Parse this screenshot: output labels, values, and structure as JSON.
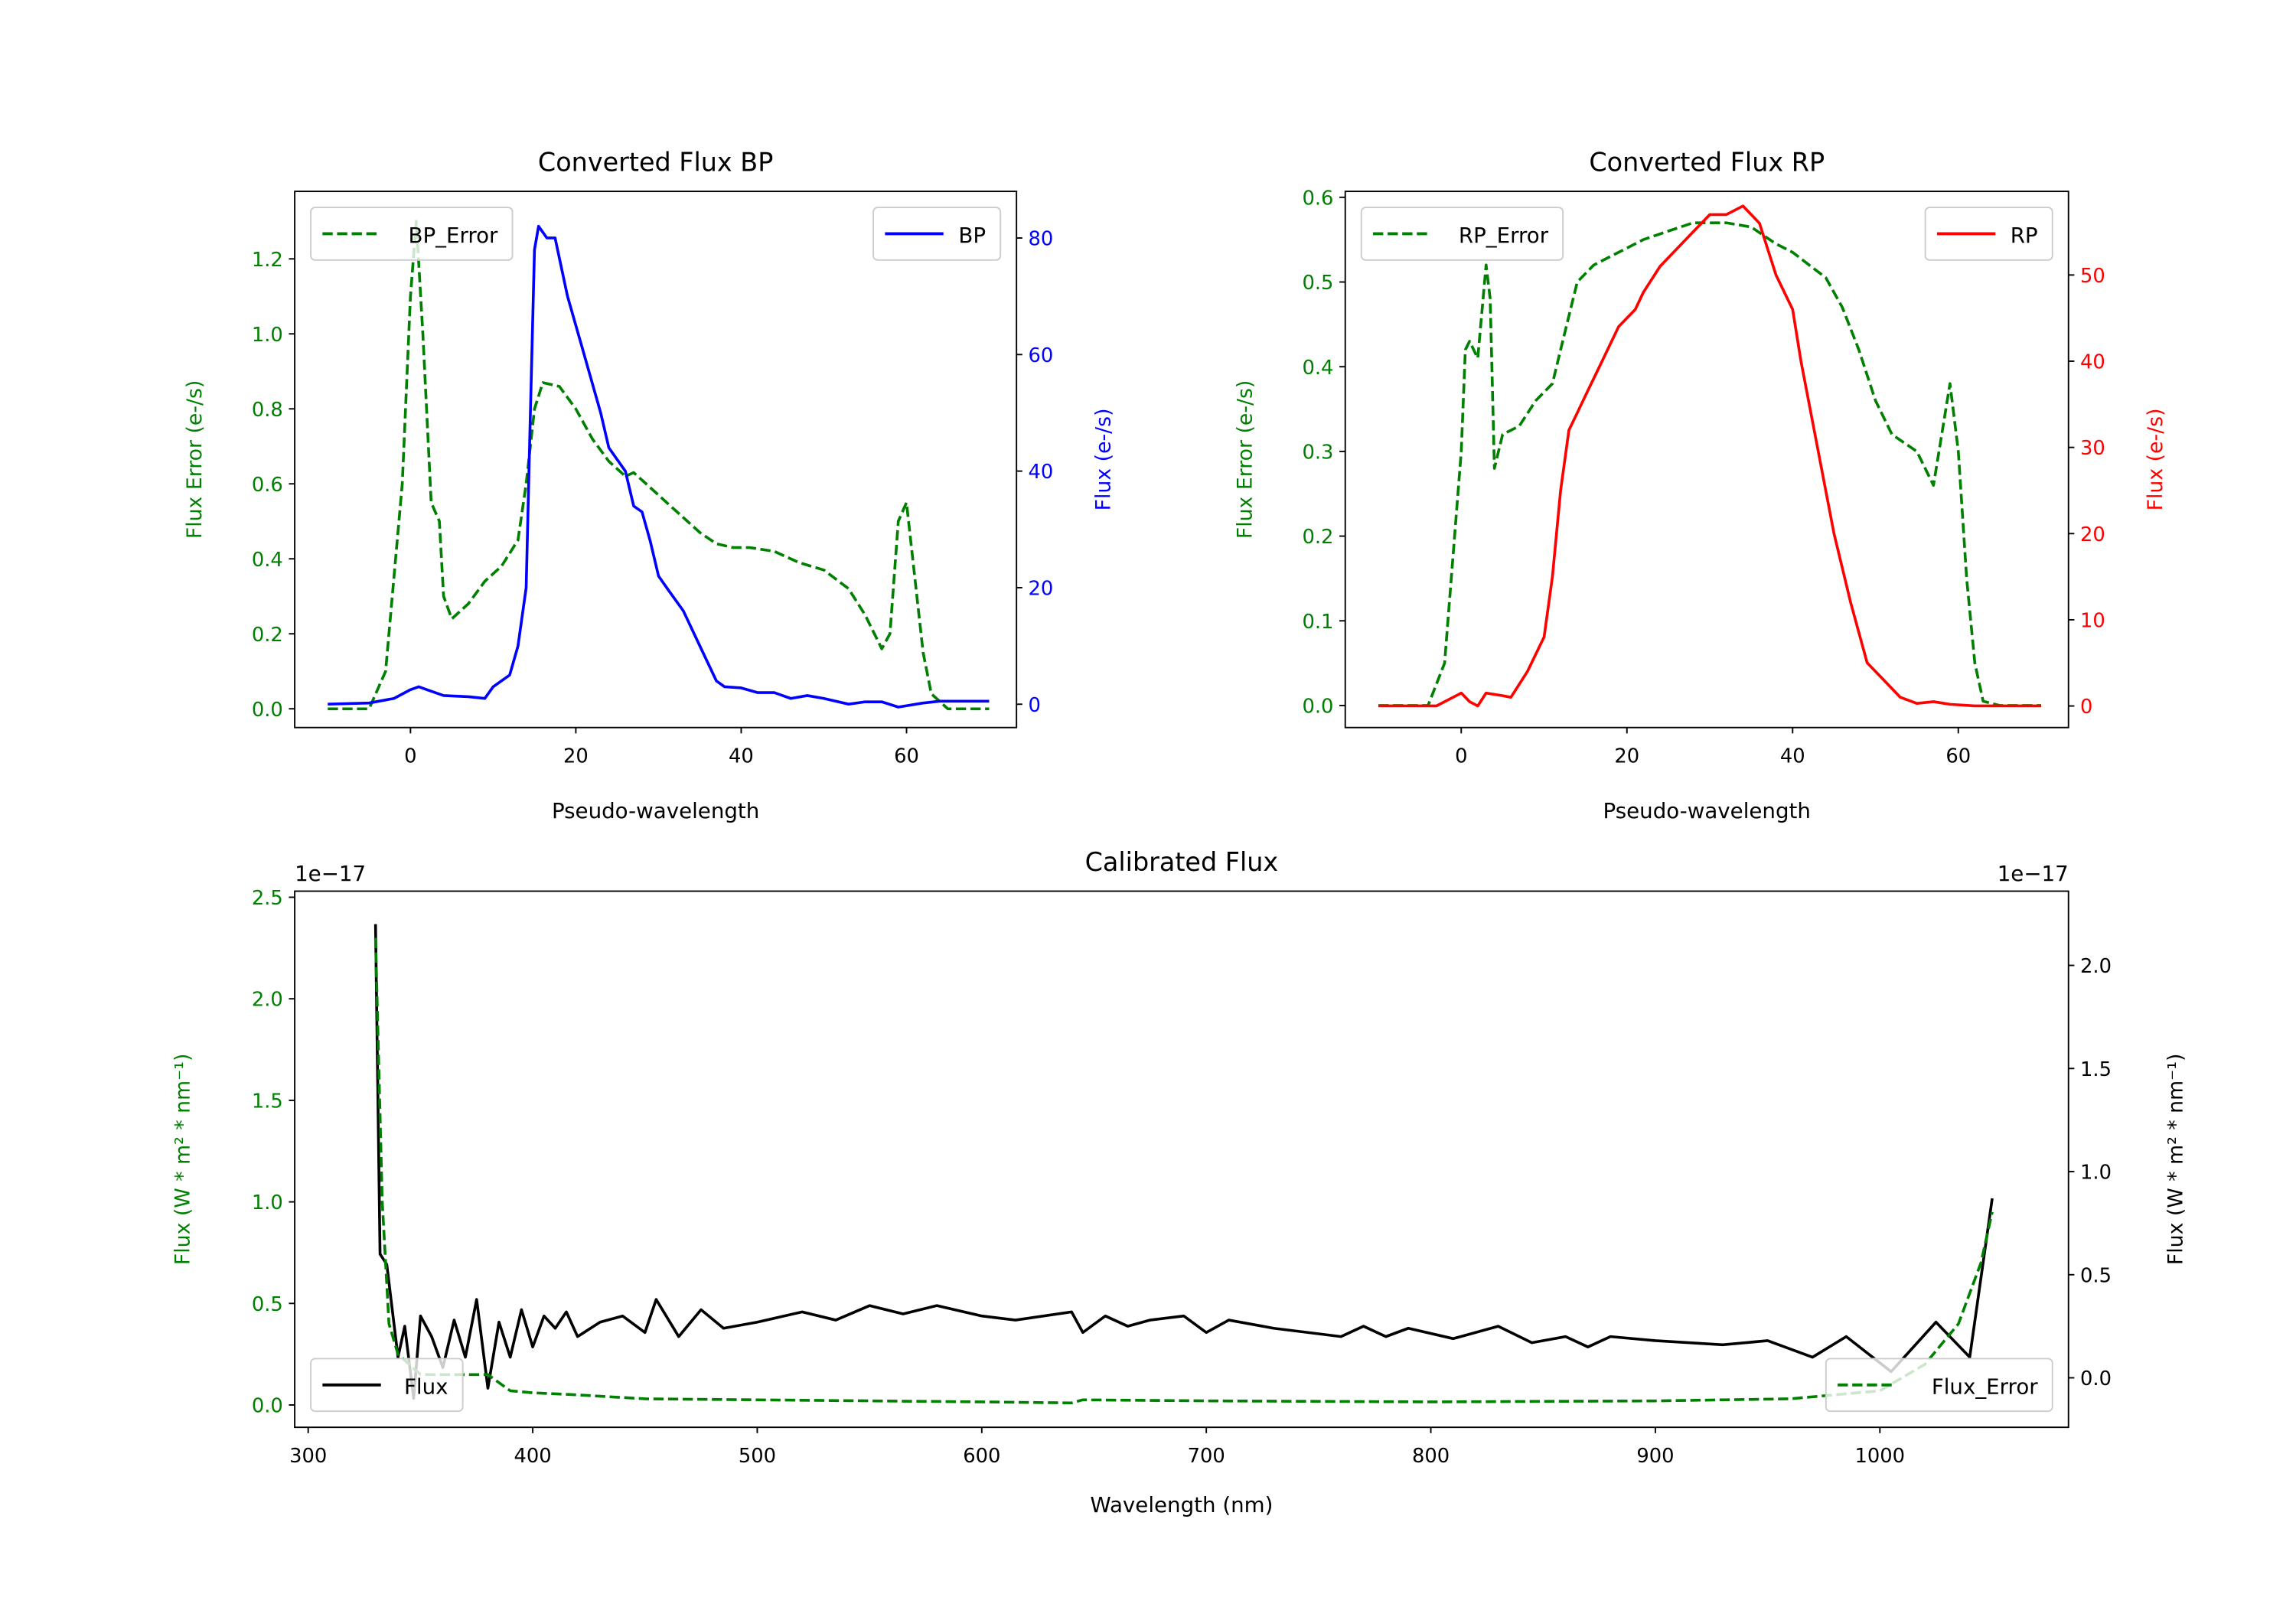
{
  "colors": {
    "error": "#008000",
    "bp": "#0000ff",
    "rp": "#ff0000",
    "flux": "#000000"
  },
  "chart_data": [
    {
      "id": "bp",
      "type": "line",
      "title": "Converted Flux BP",
      "xlabel": "Pseudo-wavelength",
      "ylabel_left": "Flux Error (e-/s)",
      "ylabel_right": "Flux (e-/s)",
      "xlim": [
        -14,
        73.3
      ],
      "ylim_left": [
        -0.05,
        1.38
      ],
      "ylim_right": [
        -4,
        88
      ],
      "xticks": [
        0,
        20,
        40,
        60
      ],
      "yticks_left": [
        "0.0",
        "0.2",
        "0.4",
        "0.6",
        "0.8",
        "1.0",
        "1.2"
      ],
      "yticks_right": [
        "0",
        "20",
        "40",
        "60",
        "80"
      ],
      "legend_left": "BP_Error",
      "legend_left_placement": "upper left",
      "legend_right": "BP",
      "legend_right_placement": "upper right",
      "series": [
        {
          "name": "BP_Error",
          "axis": "left",
          "style": "dashed",
          "color": "#008000",
          "x": [
            -10,
            -5,
            -3,
            -1,
            0,
            0.7,
            1.5,
            2.5,
            3.5,
            4,
            5,
            7,
            9,
            11,
            13,
            14,
            15,
            16,
            18,
            20,
            22,
            24,
            26,
            27,
            29,
            31,
            33,
            35,
            37,
            39,
            41,
            44,
            47,
            50,
            53,
            55,
            57,
            58,
            59,
            60,
            61,
            62,
            63,
            65,
            70
          ],
          "y": [
            0,
            0,
            0.1,
            0.6,
            1.1,
            1.3,
            1.0,
            0.55,
            0.5,
            0.3,
            0.24,
            0.28,
            0.34,
            0.38,
            0.45,
            0.6,
            0.8,
            0.87,
            0.86,
            0.8,
            0.72,
            0.66,
            0.62,
            0.63,
            0.59,
            0.55,
            0.51,
            0.47,
            0.44,
            0.43,
            0.43,
            0.42,
            0.39,
            0.37,
            0.32,
            0.25,
            0.16,
            0.2,
            0.5,
            0.55,
            0.35,
            0.15,
            0.04,
            0,
            0
          ]
        },
        {
          "name": "BP",
          "axis": "right",
          "style": "solid",
          "color": "#0000ff",
          "x": [
            -10,
            -5,
            -2,
            0,
            1,
            2,
            4,
            7,
            9,
            10,
            12,
            13,
            14,
            14.5,
            15,
            15.5,
            16.5,
            17.5,
            19,
            21,
            23,
            24,
            26,
            27,
            28,
            29,
            30,
            31,
            33,
            35,
            37,
            38,
            40,
            42,
            44,
            46,
            48,
            50,
            53,
            55,
            57,
            59,
            62,
            64,
            70
          ],
          "y": [
            0,
            0.2,
            1,
            2.5,
            3,
            2.5,
            1.5,
            1.3,
            1,
            3,
            5,
            10,
            20,
            50,
            78,
            82,
            80,
            80,
            70,
            60,
            50,
            44,
            40,
            34,
            33,
            28,
            22,
            20,
            16,
            10,
            4,
            3,
            2.8,
            2,
            2,
            1,
            1.5,
            1,
            0,
            0.4,
            0.4,
            -0.5,
            0.2,
            0.5,
            0.5
          ]
        }
      ]
    },
    {
      "id": "rp",
      "type": "line",
      "title": "Converted Flux RP",
      "xlabel": "Pseudo-wavelength",
      "ylabel_left": "Flux Error (e-/s)",
      "ylabel_right": "Flux (e-/s)",
      "xlim": [
        -14,
        73.3
      ],
      "ylim_left": [
        -0.026,
        0.607
      ],
      "ylim_right": [
        -2.5,
        59.7
      ],
      "xticks": [
        0,
        20,
        40,
        60
      ],
      "yticks_left": [
        "0.0",
        "0.1",
        "0.2",
        "0.3",
        "0.4",
        "0.5",
        "0.6"
      ],
      "yticks_right": [
        "0",
        "10",
        "20",
        "30",
        "40",
        "50"
      ],
      "legend_left": "RP_Error",
      "legend_left_placement": "upper left",
      "legend_right": "RP",
      "legend_right_placement": "upper right",
      "series": [
        {
          "name": "RP_Error",
          "axis": "left",
          "style": "dashed",
          "color": "#008000",
          "x": [
            -10,
            -4,
            -2,
            0,
            0.5,
            1,
            2,
            3,
            3.5,
            4,
            5,
            7,
            9,
            11,
            12,
            14,
            16,
            18,
            20,
            22,
            25,
            28,
            32,
            35,
            38,
            40,
            42,
            44,
            46,
            48,
            50,
            52,
            55,
            57,
            59,
            60,
            61,
            62,
            63,
            65,
            70
          ],
          "y": [
            0,
            0,
            0.05,
            0.3,
            0.42,
            0.43,
            0.41,
            0.52,
            0.48,
            0.28,
            0.32,
            0.33,
            0.36,
            0.38,
            0.42,
            0.5,
            0.52,
            0.53,
            0.54,
            0.55,
            0.56,
            0.57,
            0.57,
            0.565,
            0.545,
            0.535,
            0.52,
            0.505,
            0.47,
            0.42,
            0.36,
            0.32,
            0.3,
            0.26,
            0.38,
            0.3,
            0.15,
            0.05,
            0.005,
            0,
            0
          ]
        },
        {
          "name": "RP",
          "axis": "right",
          "style": "solid",
          "color": "#ff0000",
          "x": [
            -10,
            -3,
            0,
            1,
            2,
            3,
            5,
            6,
            8,
            10,
            11,
            12,
            13,
            14,
            15,
            17,
            19,
            21,
            22,
            24,
            26,
            28,
            30,
            32,
            34,
            36,
            38,
            40,
            41,
            43,
            45,
            47,
            49,
            51,
            53,
            55,
            57,
            59,
            62,
            70
          ],
          "y": [
            0,
            0,
            1.5,
            0.5,
            0,
            1.5,
            1.2,
            1,
            4,
            8,
            15,
            25,
            32,
            34,
            36,
            40,
            44,
            46,
            48,
            51,
            53,
            55,
            57,
            57,
            58,
            56,
            50,
            46,
            40,
            30,
            20,
            12,
            5,
            3,
            1,
            0.3,
            0.5,
            0.2,
            0,
            0
          ]
        }
      ]
    },
    {
      "id": "cal",
      "type": "line",
      "title": "Calibrated Flux",
      "xlabel": "Wavelength (nm)",
      "ylabel_left": "Flux (W * m² * nm⁻¹)",
      "ylabel_right": "Flux (W * m² * nm⁻¹)",
      "offset_left": "1e−17",
      "offset_right": "1e−17",
      "xlim": [
        294,
        1084
      ],
      "ylim_left": [
        -0.11,
        2.53
      ],
      "ylim_right": [
        -0.24,
        2.36
      ],
      "xticks": [
        300,
        400,
        500,
        600,
        700,
        800,
        900,
        1000
      ],
      "yticks_left": [
        "0.0",
        "0.5",
        "1.0",
        "1.5",
        "2.0",
        "2.5"
      ],
      "yticks_right": [
        "0.0",
        "0.5",
        "1.0",
        "1.5",
        "2.0"
      ],
      "legend_left": "Flux",
      "legend_left_placement": "lower left",
      "legend_right": "Flux_Error",
      "legend_right_placement": "lower right",
      "series": [
        {
          "name": "Flux",
          "axis": "right",
          "style": "solid",
          "color": "#000000",
          "x": [
            330,
            332,
            335,
            340,
            343,
            347,
            350,
            355,
            360,
            365,
            370,
            375,
            380,
            385,
            390,
            395,
            400,
            405,
            410,
            415,
            420,
            430,
            440,
            450,
            455,
            465,
            475,
            485,
            500,
            520,
            535,
            550,
            565,
            580,
            600,
            615,
            640,
            645,
            655,
            665,
            675,
            690,
            700,
            710,
            730,
            760,
            770,
            780,
            790,
            810,
            830,
            845,
            860,
            870,
            880,
            900,
            930,
            950,
            970,
            985,
            1005,
            1025,
            1040,
            1050
          ],
          "y": [
            2.2,
            0.6,
            0.55,
            0.1,
            0.25,
            -0.1,
            0.3,
            0.2,
            0.05,
            0.28,
            0.1,
            0.38,
            -0.05,
            0.27,
            0.1,
            0.33,
            0.15,
            0.3,
            0.24,
            0.32,
            0.2,
            0.27,
            0.3,
            0.22,
            0.38,
            0.2,
            0.33,
            0.24,
            0.27,
            0.32,
            0.28,
            0.35,
            0.31,
            0.35,
            0.3,
            0.28,
            0.32,
            0.22,
            0.3,
            0.25,
            0.28,
            0.3,
            0.22,
            0.28,
            0.24,
            0.2,
            0.25,
            0.2,
            0.24,
            0.19,
            0.25,
            0.17,
            0.2,
            0.15,
            0.2,
            0.18,
            0.16,
            0.18,
            0.1,
            0.2,
            0.03,
            0.27,
            0.1,
            0.87
          ]
        },
        {
          "name": "Flux_Error",
          "axis": "left",
          "style": "dashed",
          "color": "#008000",
          "x": [
            330,
            333,
            336,
            340,
            350,
            380,
            390,
            400,
            420,
            450,
            500,
            600,
            640,
            645,
            700,
            800,
            900,
            960,
            1000,
            1020,
            1035,
            1045,
            1050
          ],
          "y": [
            2.3,
            1.0,
            0.4,
            0.25,
            0.15,
            0.15,
            0.07,
            0.06,
            0.05,
            0.03,
            0.025,
            0.015,
            0.01,
            0.025,
            0.02,
            0.015,
            0.02,
            0.03,
            0.07,
            0.2,
            0.4,
            0.7,
            0.95
          ]
        }
      ]
    }
  ]
}
